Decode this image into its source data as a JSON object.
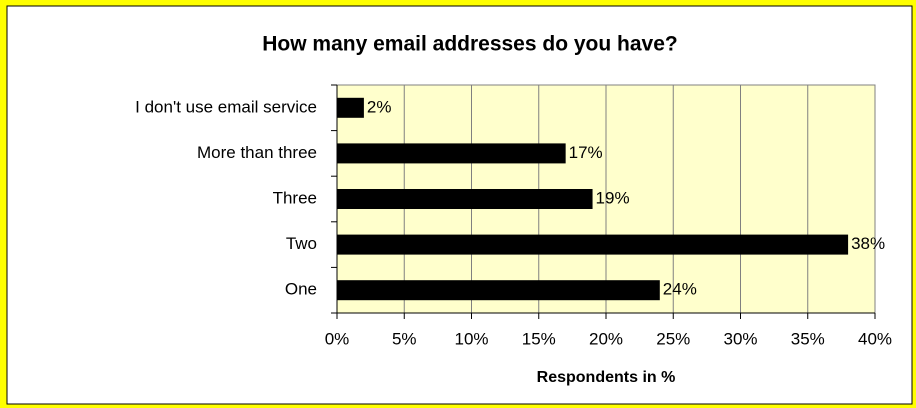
{
  "chart_data": {
    "type": "bar",
    "orientation": "horizontal",
    "title": "How many email addresses do you have?",
    "x_label": "Respondents in %",
    "categories": [
      "I don't use email service",
      "More than three",
      "Three",
      "Two",
      "One"
    ],
    "values": [
      2,
      17,
      19,
      38,
      24
    ],
    "value_labels": [
      "2%",
      "17%",
      "19%",
      "38%",
      "24%"
    ],
    "color": "#000000",
    "plot_background": "#ffffcc",
    "xlim": [
      0,
      40
    ],
    "xticks": [
      {
        "value": 0,
        "label": "0%"
      },
      {
        "value": 5,
        "label": "5%"
      },
      {
        "value": 10,
        "label": "10%"
      },
      {
        "value": 15,
        "label": "15%"
      },
      {
        "value": 20,
        "label": "20%"
      },
      {
        "value": 25,
        "label": "25%"
      },
      {
        "value": 30,
        "label": "30%"
      },
      {
        "value": 35,
        "label": "35%"
      },
      {
        "value": 40,
        "label": "40%"
      }
    ],
    "grid": true
  }
}
